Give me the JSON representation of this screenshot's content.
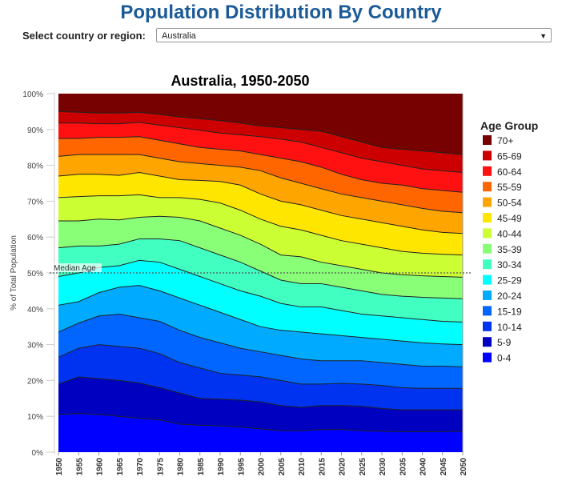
{
  "page_title": "Population Distribution By Country",
  "selector": {
    "label": "Select country or region:",
    "value": "Australia"
  },
  "chart_data": {
    "type": "area",
    "title": "Australia, 1950-2050",
    "ylabel": "% of Total Population",
    "xlabel": "",
    "ylim": [
      0,
      100
    ],
    "y_ticks": [
      "0%",
      "10%",
      "20%",
      "30%",
      "40%",
      "50%",
      "60%",
      "70%",
      "80%",
      "90%",
      "100%"
    ],
    "x": [
      1950,
      1955,
      1960,
      1965,
      1970,
      1975,
      1980,
      1985,
      1990,
      1995,
      2000,
      2005,
      2010,
      2015,
      2020,
      2025,
      2030,
      2035,
      2040,
      2045,
      2050
    ],
    "legend_title": "Age Group",
    "legend_position": "right",
    "annotation": {
      "label": "Median Age",
      "y": 50
    },
    "stacked_cumulative": true,
    "series": [
      {
        "name": "0-4",
        "color": "#0000ff",
        "top": [
          10.5,
          10.8,
          10.5,
          10,
          9.5,
          9,
          7.8,
          7.5,
          7.3,
          7,
          6.5,
          6,
          6,
          6.3,
          6.3,
          6,
          5.8,
          5.7,
          5.7,
          5.7,
          5.8
        ]
      },
      {
        "name": "5-9",
        "color": "#0000c0",
        "top": [
          19,
          21,
          20.5,
          20,
          19.3,
          18,
          16.5,
          15,
          14.8,
          14.5,
          14,
          13,
          12.5,
          13,
          13,
          12.8,
          12.2,
          11.8,
          11.8,
          11.8,
          11.8
        ]
      },
      {
        "name": "10-14",
        "color": "#0033f0",
        "top": [
          26.5,
          29,
          30,
          29.5,
          29,
          27.5,
          25,
          23.5,
          22,
          21.5,
          21,
          20,
          19,
          19,
          19.2,
          19,
          18.6,
          18,
          17.8,
          17.8,
          17.8
        ]
      },
      {
        "name": "15-19",
        "color": "#0066ff",
        "top": [
          33.5,
          36,
          38,
          38.5,
          37.5,
          36.5,
          34,
          32,
          30.5,
          29,
          28,
          27,
          26,
          25.5,
          25.5,
          25.5,
          25,
          24.5,
          24,
          24,
          23.8
        ]
      },
      {
        "name": "20-24",
        "color": "#00aaff",
        "top": [
          41,
          42,
          44.5,
          46,
          46.5,
          45,
          43,
          41,
          39,
          37,
          35,
          34,
          33.5,
          33,
          32.5,
          32,
          31.5,
          31,
          30.5,
          30.2,
          30
        ]
      },
      {
        "name": "25-29",
        "color": "#00ffff",
        "top": [
          49,
          50,
          51.5,
          52,
          53.5,
          53,
          51,
          49,
          47,
          45,
          43.5,
          41.5,
          40.5,
          40.5,
          39.5,
          38.5,
          38,
          37.5,
          37,
          36.5,
          36.3
        ]
      },
      {
        "name": "30-34",
        "color": "#40ffc0",
        "top": [
          57,
          57.5,
          57.5,
          58,
          59.5,
          59.5,
          59,
          57,
          55,
          53,
          50.5,
          48,
          47,
          47,
          46,
          45,
          44,
          43.5,
          43.2,
          43,
          42.8
        ]
      },
      {
        "name": "35-39",
        "color": "#88ff77",
        "top": [
          64.5,
          64.5,
          65,
          64.8,
          65.5,
          65.8,
          65.5,
          64.5,
          62.5,
          60.5,
          58,
          55,
          54.5,
          53,
          52,
          51,
          50,
          49.5,
          49.2,
          49,
          48.8
        ]
      },
      {
        "name": "40-44",
        "color": "#ccff33",
        "top": [
          71,
          71.3,
          71.5,
          71.5,
          71.8,
          71,
          71,
          70.5,
          69.5,
          67.5,
          65,
          63,
          62,
          60.5,
          59,
          58,
          57,
          56,
          55.5,
          55.2,
          55
        ]
      },
      {
        "name": "45-49",
        "color": "#ffe600",
        "top": [
          77,
          77.5,
          77.5,
          77.2,
          78,
          77,
          76,
          75.8,
          75.5,
          74.5,
          72,
          70,
          69,
          67.5,
          66,
          65,
          64,
          63,
          62,
          61.3,
          61
        ]
      },
      {
        "name": "50-54",
        "color": "#ffa500",
        "top": [
          82.5,
          83,
          83,
          83,
          83,
          82,
          81,
          80.5,
          80,
          79.5,
          78.5,
          76.5,
          75,
          73.5,
          72,
          71,
          70,
          69,
          68,
          67.2,
          66.8
        ]
      },
      {
        "name": "55-59",
        "color": "#ff6600",
        "top": [
          87.5,
          87.5,
          87.8,
          87.8,
          88,
          87,
          86,
          85,
          84.5,
          84,
          83,
          82,
          81,
          79.5,
          77.5,
          76,
          75,
          74.5,
          73.5,
          73,
          72.5
        ]
      },
      {
        "name": "60-64",
        "color": "#ff1111",
        "top": [
          91.8,
          91.8,
          91.6,
          91.6,
          92,
          91.2,
          90.5,
          89.8,
          89,
          88.5,
          88,
          87.3,
          86.5,
          85,
          83.5,
          82,
          81,
          80,
          79,
          78.5,
          78
        ]
      },
      {
        "name": "65-69",
        "color": "#cc0000",
        "top": [
          95,
          94.8,
          94.6,
          94.6,
          94.8,
          94.2,
          93.5,
          93,
          92.5,
          91.8,
          91,
          90.5,
          90,
          89.5,
          88,
          86.5,
          85,
          84.5,
          84,
          83.5,
          83
        ]
      },
      {
        "name": "70+",
        "color": "#770000",
        "top": [
          100,
          100,
          100,
          100,
          100,
          100,
          100,
          100,
          100,
          100,
          100,
          100,
          100,
          100,
          100,
          100,
          100,
          100,
          100,
          100,
          100
        ]
      }
    ]
  }
}
